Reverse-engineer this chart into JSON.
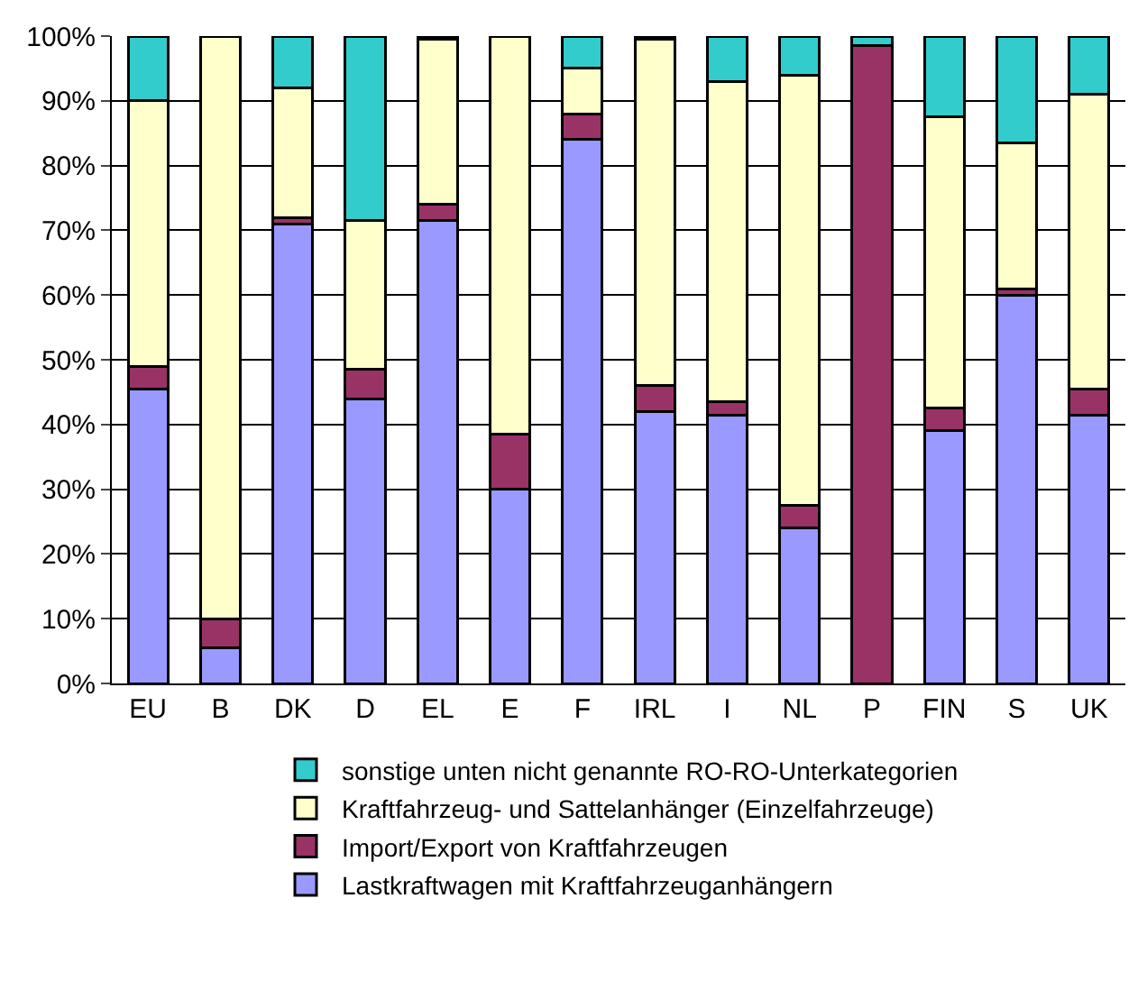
{
  "chart_data": {
    "type": "bar",
    "stacked": true,
    "categories": [
      "EU",
      "B",
      "DK",
      "D",
      "EL",
      "E",
      "F",
      "IRL",
      "I",
      "NL",
      "P",
      "FIN",
      "S",
      "UK"
    ],
    "series": [
      {
        "name": "Lastkraftwagen mit Kraftfahrzeuganhängern",
        "color": "#9999ff",
        "values": [
          45.5,
          5.5,
          71,
          44,
          71.5,
          30,
          84,
          42,
          41.5,
          24,
          null,
          39,
          60,
          41.5
        ]
      },
      {
        "name": "Import/Export von Kraftfahrzeugen",
        "color": "#993366",
        "values": [
          3.5,
          4.5,
          1,
          4.5,
          2.5,
          8.5,
          4,
          4,
          2,
          3.5,
          98.5,
          3.5,
          1,
          4
        ]
      },
      {
        "name": "Kraftfahrzeug- und Sattelanhänger (Einzelfahrzeuge)",
        "color": "#ffffcc",
        "values": [
          41,
          90,
          20,
          23,
          25.5,
          61.5,
          7,
          53.5,
          49.5,
          66.5,
          null,
          45,
          22.5,
          45.5
        ]
      },
      {
        "name": "sonstige unten nicht genannte RO-RO-Unterkategorien",
        "color": "#33cccc",
        "values": [
          10,
          null,
          8,
          28.5,
          0.5,
          null,
          5,
          0.5,
          7,
          6,
          1.5,
          12.5,
          16.5,
          9
        ]
      }
    ],
    "ylim": [
      0,
      100
    ],
    "yticks": [
      {
        "value": 0,
        "label": "0%"
      },
      {
        "value": 10,
        "label": "10%"
      },
      {
        "value": 20,
        "label": "20%"
      },
      {
        "value": 30,
        "label": "30%"
      },
      {
        "value": 40,
        "label": "40%"
      },
      {
        "value": 50,
        "label": "50%"
      },
      {
        "value": 60,
        "label": "60%"
      },
      {
        "value": 70,
        "label": "70%"
      },
      {
        "value": 80,
        "label": "80%"
      },
      {
        "value": 90,
        "label": "90%"
      },
      {
        "value": 100,
        "label": "100%"
      }
    ],
    "grid": "y",
    "legend": "bottom"
  }
}
